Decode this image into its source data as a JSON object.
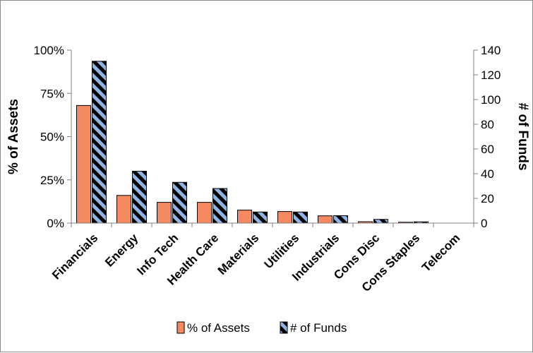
{
  "chart_data": {
    "type": "bar",
    "categories": [
      "Financials",
      "Energy",
      "Info Tech",
      "Health Care",
      "Materials",
      "Utilities",
      "Industrials",
      "Cons Disc",
      "Cons Staples",
      "Telecom"
    ],
    "series": [
      {
        "name": "% of Assets",
        "axis": "left",
        "color": "#F5895F",
        "pattern": "solid",
        "values": [
          0.68,
          0.16,
          0.12,
          0.12,
          0.075,
          0.067,
          0.042,
          0.008,
          0.005,
          0.0
        ]
      },
      {
        "name": "# of Funds",
        "axis": "right",
        "color": "#8FB3E3",
        "pattern": "black-diagonal-hatch",
        "values": [
          131,
          42,
          33,
          28,
          9,
          9,
          6,
          3,
          1,
          0
        ]
      }
    ],
    "ylabel": "% of Assets",
    "y2label": "# of Funds",
    "ylim": [
      0,
      1
    ],
    "y2lim": [
      0,
      140
    ],
    "yticks": [
      "0%",
      "25%",
      "50%",
      "75%",
      "100%"
    ],
    "y2ticks": [
      "0",
      "20",
      "40",
      "60",
      "80",
      "100",
      "120",
      "140"
    ],
    "grid": false,
    "legend": "bottom"
  }
}
